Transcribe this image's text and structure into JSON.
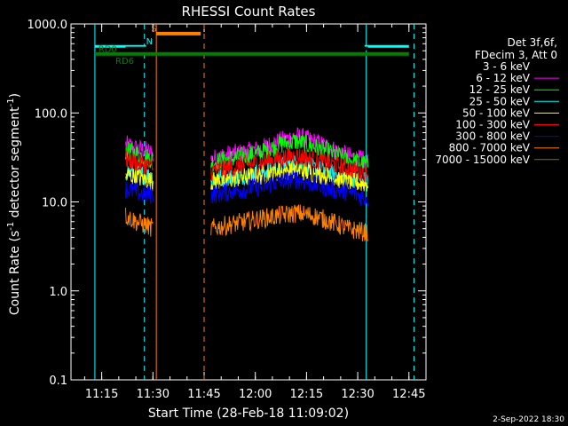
{
  "chart_data": {
    "type": "line",
    "title": "RHESSI Count Rates",
    "xlabel": "Start Time (28-Feb-18 11:09:02)",
    "ylabel_main": "Count Rate (s",
    "ylabel_sup": "-1",
    "ylabel_rest": " detector segment",
    "ylabel_sup2": "-1",
    "ylabel_end": ")",
    "date_stamp": "2-Sep-2022 18:30",
    "y_scale": "log",
    "ylim": [
      0.1,
      1000
    ],
    "xlim_minutes": [
      "11:06",
      "12:50"
    ],
    "x_ticks": [
      {
        "label": "11:15",
        "min": 675
      },
      {
        "label": "11:30",
        "min": 690
      },
      {
        "label": "11:45",
        "min": 705
      },
      {
        "label": "12:00",
        "min": 720
      },
      {
        "label": "12:15",
        "min": 735
      },
      {
        "label": "12:30",
        "min": 750
      },
      {
        "label": "12:45",
        "min": 765
      }
    ],
    "y_ticks": [
      {
        "label": "1000.0",
        "value": 1000
      },
      {
        "label": "100.0",
        "value": 100
      },
      {
        "label": "10.0",
        "value": 10
      },
      {
        "label": "1.0",
        "value": 1
      },
      {
        "label": "0.1",
        "value": 0.1
      }
    ],
    "legend": {
      "header1": "Det 3f,6f,",
      "header2": "FDecim 3, Att 0",
      "entries": [
        {
          "label": "3 - 6 keV",
          "color": "#000000"
        },
        {
          "label": "6 - 12 keV",
          "color": "#ff00ff"
        },
        {
          "label": "12 - 25 keV",
          "color": "#00ff00"
        },
        {
          "label": "25 - 50 keV",
          "color": "#00ffff"
        },
        {
          "label": "50 - 100 keV",
          "color": "#ffff00"
        },
        {
          "label": "100 - 300 keV",
          "color": "#ff0000"
        },
        {
          "label": "300 - 800 keV",
          "color": "#0000ff"
        },
        {
          "label": "800 - 7000 keV",
          "color": "#ff8000"
        },
        {
          "label": "7000 - 15000 keV",
          "color": "#8b6914"
        }
      ]
    },
    "series": [
      {
        "name": "6 - 12 keV",
        "color": "#ff00ff",
        "segments": [
          {
            "t": [
              682,
              685,
              688,
              690
            ],
            "y": [
              44,
              40,
              38,
              35
            ]
          },
          {
            "t": [
              707,
              712,
              717,
              722,
              727,
              732,
              737,
              742,
              747,
              753
            ],
            "y": [
              30,
              34,
              36,
              40,
              48,
              55,
              48,
              40,
              33,
              28
            ]
          }
        ]
      },
      {
        "name": "12 - 25 keV",
        "color": "#00ff00",
        "segments": [
          {
            "t": [
              682,
              685,
              688,
              690
            ],
            "y": [
              38,
              35,
              32,
              30
            ]
          },
          {
            "t": [
              707,
              712,
              717,
              722,
              727,
              732,
              737,
              742,
              747,
              753
            ],
            "y": [
              28,
              30,
              33,
              36,
              44,
              48,
              42,
              36,
              30,
              26
            ]
          }
        ]
      },
      {
        "name": "25 - 50 keV",
        "color": "#00ffff",
        "segments": [
          {
            "t": [
              682,
              685,
              688,
              690
            ],
            "y": [
              22,
              21,
              20,
              19
            ]
          },
          {
            "t": [
              707,
              712,
              717,
              722,
              727,
              732,
              737,
              742,
              747,
              753
            ],
            "y": [
              18,
              19,
              20,
              22,
              25,
              27,
              24,
              21,
              19,
              17
            ]
          }
        ]
      },
      {
        "name": "50 - 100 keV",
        "color": "#ffff00",
        "segments": [
          {
            "t": [
              682,
              685,
              688,
              690
            ],
            "y": [
              20,
              19,
              18,
              17
            ]
          },
          {
            "t": [
              707,
              712,
              717,
              722,
              727,
              732,
              737,
              742,
              747,
              753
            ],
            "y": [
              17,
              18,
              19,
              20,
              22,
              23,
              21,
              19,
              17,
              16
            ]
          }
        ]
      },
      {
        "name": "100 - 300 keV",
        "color": "#ff0000",
        "segments": [
          {
            "t": [
              682,
              685,
              688,
              690
            ],
            "y": [
              30,
              28,
              26,
              24
            ]
          },
          {
            "t": [
              707,
              712,
              717,
              722,
              727,
              732,
              737,
              742,
              747,
              753
            ],
            "y": [
              22,
              24,
              26,
              28,
              31,
              33,
              30,
              27,
              24,
              21
            ]
          }
        ]
      },
      {
        "name": "300 - 800 keV",
        "color": "#0000ff",
        "segments": [
          {
            "t": [
              682,
              685,
              688,
              690
            ],
            "y": [
              14,
              13,
              12,
              12
            ]
          },
          {
            "t": [
              707,
              712,
              717,
              722,
              727,
              732,
              737,
              742,
              747,
              753
            ],
            "y": [
              12,
              13,
              14,
              15,
              17,
              18,
              16,
              14,
              13,
              11
            ]
          }
        ]
      },
      {
        "name": "800 - 7000 keV",
        "color": "#ff8000",
        "segments": [
          {
            "t": [
              682,
              685,
              688,
              690
            ],
            "y": [
              7,
              6,
              5.5,
              5
            ]
          },
          {
            "t": [
              707,
              712,
              717,
              722,
              727,
              732,
              737,
              742,
              747,
              753
            ],
            "y": [
              5,
              5.5,
              6,
              6.5,
              7,
              7.5,
              7,
              6,
              5,
              4.5
            ]
          }
        ]
      }
    ],
    "top_bars": [
      {
        "color": "#00ffff",
        "segments": [
          [
            673,
            688
          ],
          [
            752,
            765
          ]
        ],
        "y": 560
      },
      {
        "color": "#000000",
        "segments": [
          [
            682,
            690
          ],
          [
            707,
            753
          ]
        ],
        "y": 530
      },
      {
        "color": "#008000",
        "segments": [
          [
            673,
            765
          ]
        ],
        "y": 460
      },
      {
        "color": "#ff8000",
        "segments": [
          [
            691,
            704
          ]
        ],
        "y": 780
      }
    ],
    "vertical_lines": [
      {
        "min": 673,
        "color": "#00ffff",
        "style": "solid"
      },
      {
        "min": 687.5,
        "color": "#00ffff",
        "style": "dashed"
      },
      {
        "min": 691,
        "color": "#ff8000",
        "style": "solid"
      },
      {
        "min": 705,
        "color": "#ff8000",
        "style": "dashed"
      },
      {
        "min": 752.5,
        "color": "#00ffff",
        "style": "solid"
      },
      {
        "min": 766.5,
        "color": "#00ffff",
        "style": "dashed"
      }
    ],
    "annotations": [
      {
        "text": "RD0",
        "color": "#008000",
        "min": 674,
        "value": 530
      },
      {
        "text": "RD6",
        "color": "#008000",
        "min": 679,
        "value": 390
      },
      {
        "text": "S",
        "color": "#ff8000",
        "min": 689.5,
        "value": 900
      },
      {
        "text": "N",
        "color": "#00ffff",
        "min": 688,
        "value": 650
      }
    ]
  }
}
